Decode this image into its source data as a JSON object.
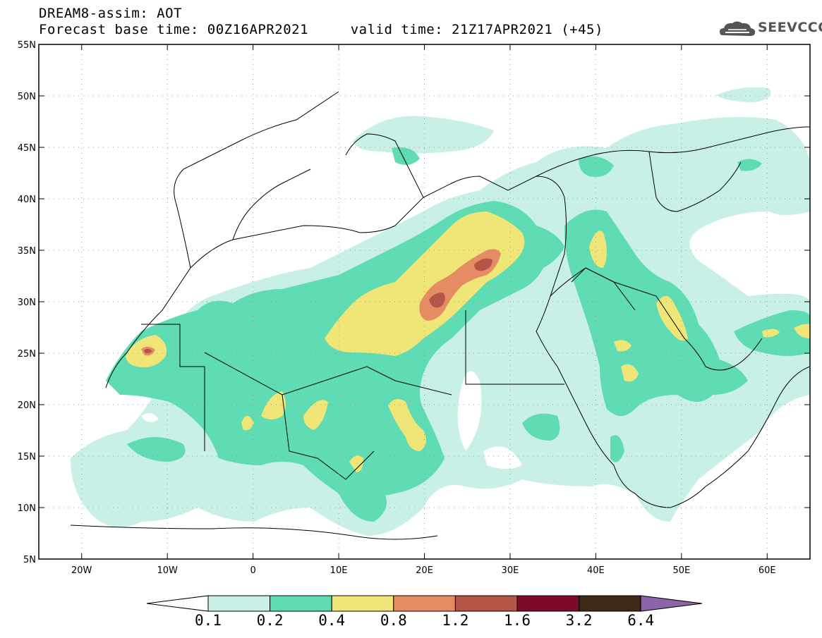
{
  "header": {
    "title_line1": "DREAM8-assim: AOT",
    "title_line2": "Forecast base time: 00Z16APR2021     valid time: 21Z17APR2021 (+45)",
    "logo_text": "SEEVCCC"
  },
  "map": {
    "lon_range": [
      -25,
      65
    ],
    "lat_range": [
      5,
      55
    ],
    "lat_ticks": [
      {
        "value": 55,
        "label": "55N"
      },
      {
        "value": 50,
        "label": "50N"
      },
      {
        "value": 45,
        "label": "45N"
      },
      {
        "value": 40,
        "label": "40N"
      },
      {
        "value": 35,
        "label": "35N"
      },
      {
        "value": 30,
        "label": "30N"
      },
      {
        "value": 25,
        "label": "25N"
      },
      {
        "value": 20,
        "label": "20N"
      },
      {
        "value": 15,
        "label": "15N"
      },
      {
        "value": 10,
        "label": "10N"
      },
      {
        "value": 5,
        "label": "5N"
      }
    ],
    "lon_ticks": [
      {
        "value": -20,
        "label": "20W"
      },
      {
        "value": -10,
        "label": "10W"
      },
      {
        "value": 0,
        "label": "0"
      },
      {
        "value": 10,
        "label": "10E"
      },
      {
        "value": 20,
        "label": "20E"
      },
      {
        "value": 30,
        "label": "30E"
      },
      {
        "value": 40,
        "label": "40E"
      },
      {
        "value": 50,
        "label": "50E"
      },
      {
        "value": 60,
        "label": "60E"
      }
    ]
  },
  "colorbar": {
    "labels": [
      "0.1",
      "0.2",
      "0.4",
      "0.8",
      "1.2",
      "1.6",
      "3.2",
      "6.4"
    ],
    "colors": [
      "#ffffff",
      "#c8f0e6",
      "#5fdcb4",
      "#f0e678",
      "#e68c64",
      "#b45546",
      "#7d0a28",
      "#3c2814",
      "#8c64aa"
    ]
  },
  "levels": {
    "low": "#c8f0e6",
    "mid": "#5fdcb4",
    "high": "#f0e678",
    "very_high": "#e68c64",
    "extreme": "#b45546"
  }
}
